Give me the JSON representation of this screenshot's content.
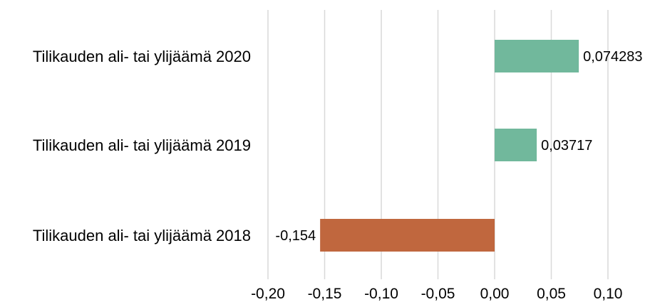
{
  "chart_data": {
    "type": "bar",
    "orientation": "horizontal",
    "categories": [
      "Tilikauden ali- tai ylijäämä 2020",
      "Tilikauden ali- tai ylijäämä 2019",
      "Tilikauden ali- tai ylijäämä 2018"
    ],
    "values": [
      0.074283,
      0.03717,
      -0.154
    ],
    "value_labels": [
      "0,074283",
      "0,03717",
      "-0,154"
    ],
    "xlim": [
      -0.2,
      0.1
    ],
    "xticks": [
      -0.2,
      -0.15,
      -0.1,
      -0.05,
      0.0,
      0.05,
      0.1
    ],
    "xtick_labels": [
      "-0,20",
      "-0,15",
      "-0,10",
      "-0,05",
      "0,00",
      "0,05",
      "0,10"
    ],
    "grid": true,
    "title": "",
    "xlabel": "",
    "ylabel": "",
    "colors": {
      "positive": "#71b89c",
      "negative": "#c0673e",
      "grid": "#d9d9d9"
    }
  }
}
